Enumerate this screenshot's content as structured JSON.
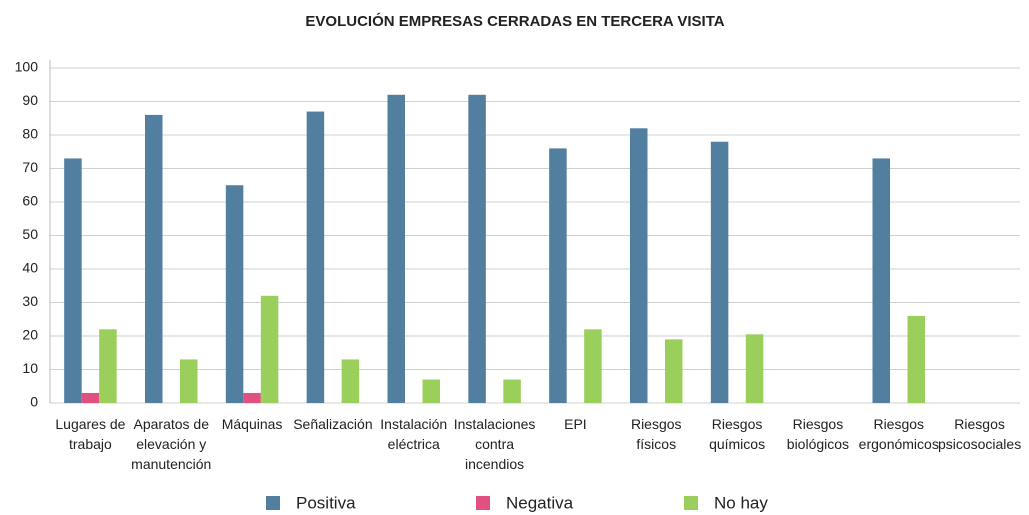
{
  "chart_data": {
    "type": "bar",
    "title": "EVOLUCIÓN EMPRESAS CERRADAS EN TERCERA VISITA",
    "categories": [
      "Lugares de\ntrabajo",
      "Aparatos de\nelevación y\nmanutención",
      "Máquinas",
      "Señalización",
      "Instalación\neléctrica",
      "Instalaciones\ncontra\nincendios",
      "EPI",
      "Riesgos\nfísicos",
      "Riesgos\nquímicos",
      "Riesgos\nbiológicos",
      "Riesgos\nergonómicos",
      "Riesgos\npsicosociales"
    ],
    "series": [
      {
        "name": "Positiva",
        "color": "#527ea0",
        "values": [
          73,
          86,
          65,
          87,
          92,
          92,
          76,
          82,
          78,
          0,
          73,
          0
        ]
      },
      {
        "name": "Negativa",
        "color": "#e0517f",
        "values": [
          3,
          0,
          3,
          0,
          0,
          0,
          0,
          0,
          0,
          0,
          0,
          0
        ]
      },
      {
        "name": "No hay",
        "color": "#9bcf5b",
        "values": [
          22,
          13,
          32,
          13,
          7,
          7,
          22,
          19,
          20.5,
          0,
          26,
          0
        ]
      }
    ],
    "ylim": [
      0,
      100
    ],
    "yticks": [
      0,
      10,
      20,
      30,
      40,
      50,
      60,
      70,
      80,
      90,
      100
    ],
    "grid": true,
    "legend": "bottom"
  }
}
